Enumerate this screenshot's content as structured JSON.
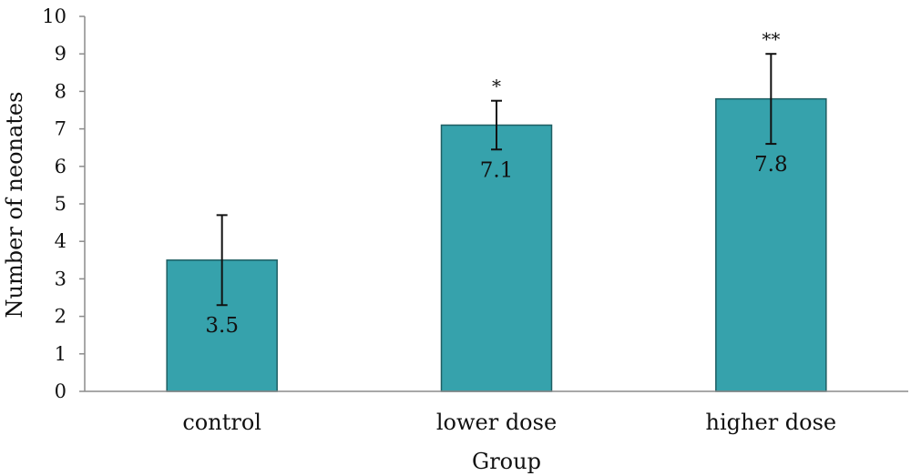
{
  "chart_data": {
    "type": "bar",
    "xlabel": "Group",
    "ylabel": "Number of neonates",
    "ylim": [
      0,
      10
    ],
    "yticks": [
      "0",
      "1",
      "2",
      "3",
      "4",
      "5",
      "6",
      "7",
      "8",
      "9",
      "10"
    ],
    "categories": [
      "control",
      "lower dose",
      "higher dose"
    ],
    "values": [
      3.5,
      7.1,
      7.8
    ],
    "data_labels": [
      "3.5",
      "7.1",
      "7.8"
    ],
    "error_low": [
      2.3,
      6.45,
      6.6
    ],
    "error_high": [
      4.7,
      7.75,
      9.0
    ],
    "significance": [
      "",
      "*",
      "**"
    ],
    "bar_color": "#36A2AC",
    "bar_edge_color": "#1E5E63",
    "grid": false,
    "legend": "none"
  }
}
